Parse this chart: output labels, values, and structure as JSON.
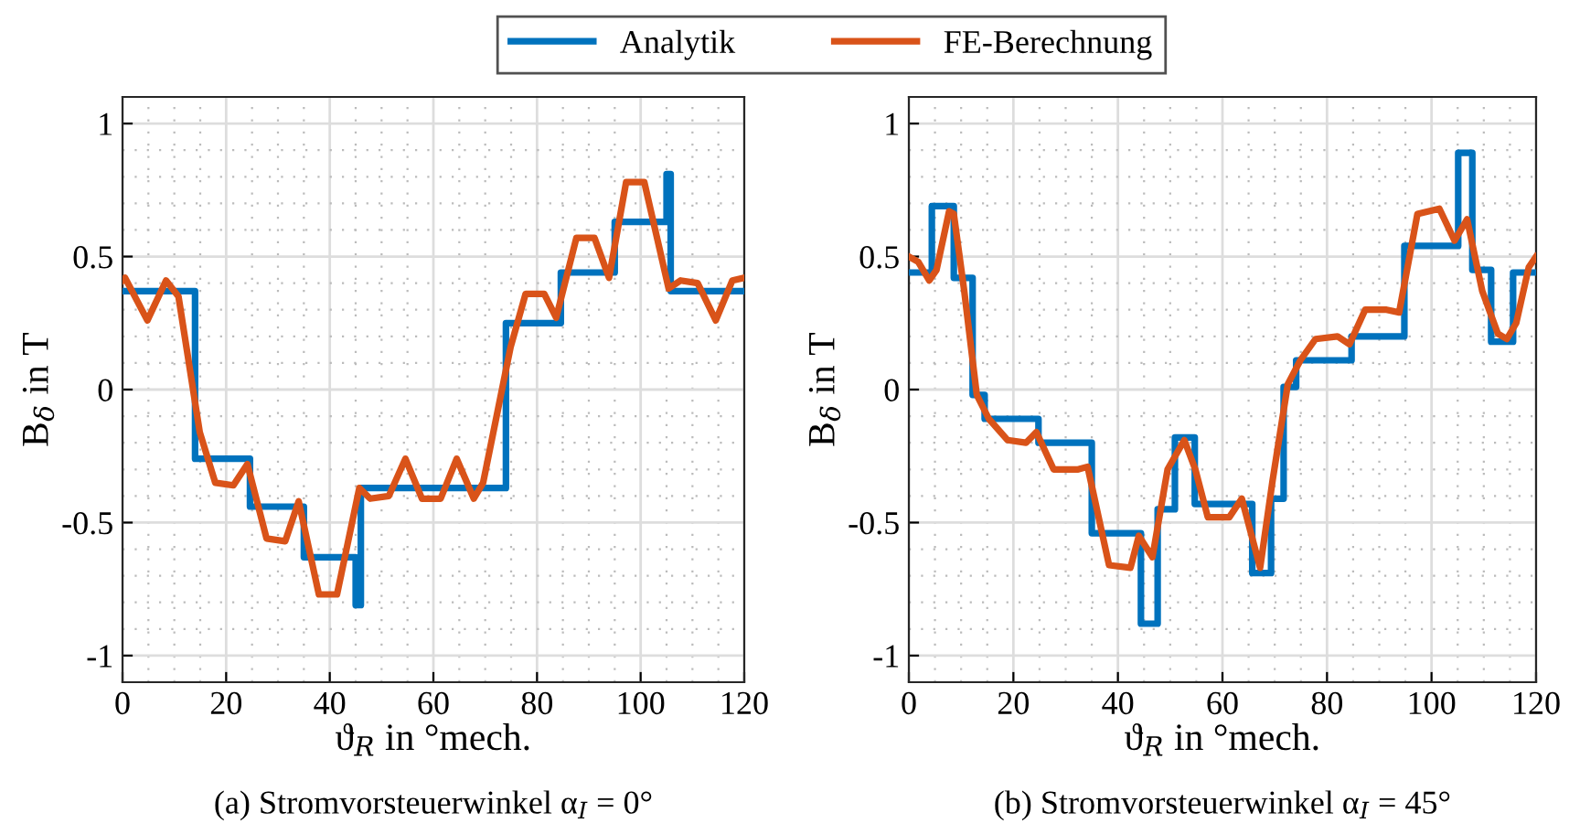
{
  "chart_data": [
    {
      "type": "line",
      "title": "(a) Stromvorsteuerwinkel α$_{I}$ = 0°",
      "xlabel": "ϑ$_{R}$ in °mech.",
      "ylabel": "B$_{δ}$ in T",
      "xlim": [
        0,
        120
      ],
      "xticks": [
        0,
        20,
        40,
        60,
        80,
        100,
        120
      ],
      "ylim": [
        -1.1,
        1.1
      ],
      "yticks": [
        -1,
        -0.5,
        0,
        0.5,
        1
      ],
      "grid": true,
      "legend": "top",
      "line_style": "solid",
      "marker": "none",
      "series": [
        {
          "name": "Analytik",
          "type": "step",
          "color": "#0072bd",
          "x": [
            0,
            14,
            24.6,
            35,
            45,
            46,
            74,
            84.6,
            95,
            105,
            105.8,
            120
          ],
          "values": [
            0.37,
            -0.26,
            -0.44,
            -0.63,
            -0.81,
            -0.37,
            0.25,
            0.44,
            0.63,
            0.81,
            0.37,
            0.37
          ]
        },
        {
          "name": "FE-Berechnung",
          "color": "#d95319",
          "x": [
            0,
            0.5,
            4.8,
            8.4,
            10.8,
            14.9,
            17.9,
            21.4,
            24.1,
            27.8,
            31.4,
            34,
            37.9,
            41.4,
            45.7,
            47.8,
            51.4,
            54.6,
            57.8,
            61.4,
            64.5,
            67.8,
            69.6,
            74.9,
            77.8,
            81.4,
            83.7,
            87.6,
            91.1,
            93.9,
            97.2,
            100.7,
            105.4,
            107.7,
            111,
            114.5,
            117.7,
            120
          ],
          "values": [
            0.41,
            0.42,
            0.26,
            0.41,
            0.35,
            -0.16,
            -0.35,
            -0.36,
            -0.28,
            -0.56,
            -0.57,
            -0.42,
            -0.77,
            -0.77,
            -0.37,
            -0.41,
            -0.4,
            -0.26,
            -0.41,
            -0.41,
            -0.26,
            -0.41,
            -0.35,
            0.16,
            0.36,
            0.36,
            0.27,
            0.57,
            0.57,
            0.42,
            0.78,
            0.78,
            0.38,
            0.41,
            0.4,
            0.26,
            0.41,
            0.42
          ]
        }
      ]
    },
    {
      "type": "line",
      "title": "(b) Stromvorsteuerwinkel α$_{I}$ = 45°",
      "xlabel": "ϑ$_{R}$ in °mech.",
      "ylabel": "B$_{δ}$ in T",
      "xlim": [
        0,
        120
      ],
      "xticks": [
        0,
        20,
        40,
        60,
        80,
        100,
        120
      ],
      "ylim": [
        -1.1,
        1.1
      ],
      "yticks": [
        -1,
        -0.5,
        0,
        0.5,
        1
      ],
      "grid": true,
      "line_style": "solid",
      "marker": "none",
      "series": [
        {
          "type": "step",
          "color": "#0072bd",
          "x": [
            0,
            4.4,
            8.6,
            12.2,
            14.5,
            24.8,
            35,
            44.4,
            47.6,
            50.9,
            54.7,
            65.7,
            69.3,
            71.7,
            74.1,
            84.7,
            94.8,
            105.1,
            107.8,
            111.4,
            115.6,
            120
          ],
          "values": [
            0.44,
            0.69,
            0.42,
            -0.02,
            -0.11,
            -0.2,
            -0.54,
            -0.88,
            -0.45,
            -0.18,
            -0.43,
            -0.69,
            -0.41,
            0.01,
            0.11,
            0.2,
            0.54,
            0.89,
            0.45,
            0.18,
            0.44,
            0.44
          ]
        },
        {
          "color": "#d95319",
          "x": [
            0,
            1.8,
            3.9,
            5.3,
            7.7,
            8.6,
            10.6,
            13,
            15.3,
            18.9,
            22.4,
            24.4,
            27.7,
            32.4,
            34.2,
            38.3,
            42.4,
            44,
            46.6,
            49.5,
            52.7,
            54.8,
            57.2,
            61.3,
            63.7,
            67.2,
            69.6,
            72.5,
            74.9,
            77.8,
            82,
            84.3,
            87.3,
            91.4,
            93.8,
            97.3,
            101.5,
            104.4,
            106.8,
            109.7,
            112.7,
            114.4,
            116.2,
            118.6,
            120
          ],
          "values": [
            0.5,
            0.48,
            0.41,
            0.45,
            0.67,
            0.66,
            0.37,
            -0.02,
            -0.11,
            -0.19,
            -0.2,
            -0.16,
            -0.3,
            -0.3,
            -0.29,
            -0.66,
            -0.67,
            -0.55,
            -0.63,
            -0.3,
            -0.19,
            -0.3,
            -0.48,
            -0.48,
            -0.41,
            -0.67,
            -0.34,
            0.02,
            0.11,
            0.19,
            0.2,
            0.17,
            0.3,
            0.3,
            0.29,
            0.66,
            0.68,
            0.56,
            0.64,
            0.37,
            0.21,
            0.19,
            0.25,
            0.46,
            0.5
          ]
        }
      ]
    }
  ]
}
